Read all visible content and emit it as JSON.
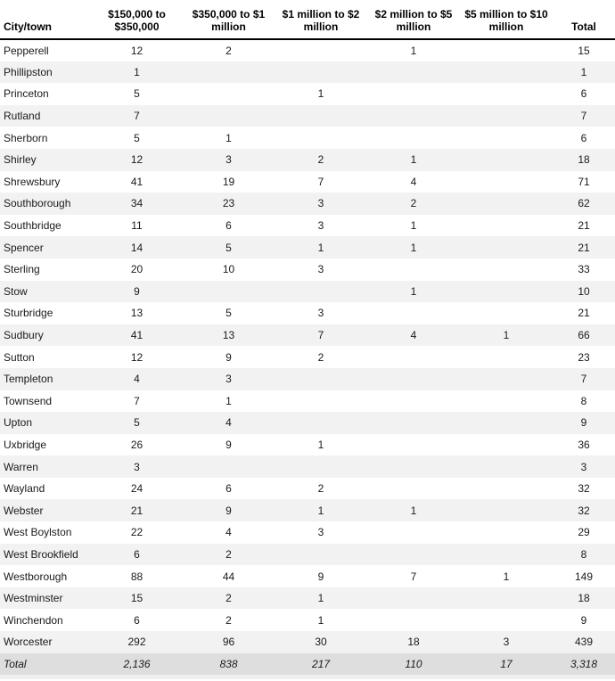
{
  "colors": {
    "row_stripe": "#f2f2f2",
    "total_row_background": "#dedede",
    "header_border": "#000000",
    "text": "#1a1a1a"
  },
  "chart_data": {
    "type": "table",
    "columns": [
      "City/town",
      "$150,000 to $350,000",
      "$350,000 to $1 million",
      "$1 million to $2 million",
      "$2 million to $5 million",
      "$5 million to $10 million",
      "Total"
    ],
    "rows": [
      [
        "Pepperell",
        12,
        2,
        null,
        1,
        null,
        15
      ],
      [
        "Phillipston",
        1,
        null,
        null,
        null,
        null,
        1
      ],
      [
        "Princeton",
        5,
        null,
        1,
        null,
        null,
        6
      ],
      [
        "Rutland",
        7,
        null,
        null,
        null,
        null,
        7
      ],
      [
        "Sherborn",
        5,
        1,
        null,
        null,
        null,
        6
      ],
      [
        "Shirley",
        12,
        3,
        2,
        1,
        null,
        18
      ],
      [
        "Shrewsbury",
        41,
        19,
        7,
        4,
        null,
        71
      ],
      [
        "Southborough",
        34,
        23,
        3,
        2,
        null,
        62
      ],
      [
        "Southbridge",
        11,
        6,
        3,
        1,
        null,
        21
      ],
      [
        "Spencer",
        14,
        5,
        1,
        1,
        null,
        21
      ],
      [
        "Sterling",
        20,
        10,
        3,
        null,
        null,
        33
      ],
      [
        "Stow",
        9,
        null,
        null,
        1,
        null,
        10
      ],
      [
        "Sturbridge",
        13,
        5,
        3,
        null,
        null,
        21
      ],
      [
        "Sudbury",
        41,
        13,
        7,
        4,
        1,
        66
      ],
      [
        "Sutton",
        12,
        9,
        2,
        null,
        null,
        23
      ],
      [
        "Templeton",
        4,
        3,
        null,
        null,
        null,
        7
      ],
      [
        "Townsend",
        7,
        1,
        null,
        null,
        null,
        8
      ],
      [
        "Upton",
        5,
        4,
        null,
        null,
        null,
        9
      ],
      [
        "Uxbridge",
        26,
        9,
        1,
        null,
        null,
        36
      ],
      [
        "Warren",
        3,
        null,
        null,
        null,
        null,
        3
      ],
      [
        "Wayland",
        24,
        6,
        2,
        null,
        null,
        32
      ],
      [
        "Webster",
        21,
        9,
        1,
        1,
        null,
        32
      ],
      [
        "West Boylston",
        22,
        4,
        3,
        null,
        null,
        29
      ],
      [
        "West Brookfield",
        6,
        2,
        null,
        null,
        null,
        8
      ],
      [
        "Westborough",
        88,
        44,
        9,
        7,
        1,
        149
      ],
      [
        "Westminster",
        15,
        2,
        1,
        null,
        null,
        18
      ],
      [
        "Winchendon",
        6,
        2,
        1,
        null,
        null,
        9
      ],
      [
        "Worcester",
        292,
        96,
        30,
        18,
        3,
        439
      ]
    ],
    "total_row": [
      "Total",
      "2,136",
      "838",
      "217",
      "110",
      "17",
      "3,318"
    ]
  }
}
